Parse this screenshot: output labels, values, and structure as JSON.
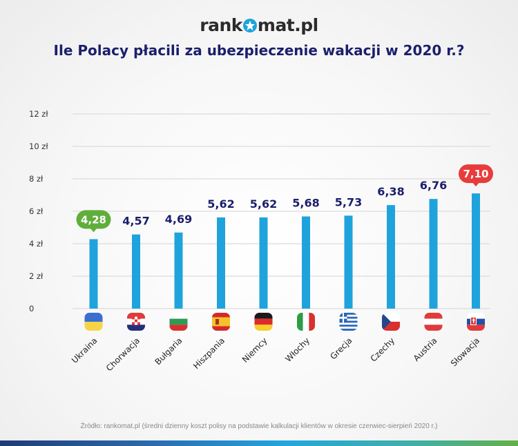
{
  "logo": {
    "before": "rank",
    "after": "mat.pl",
    "icon": "star-icon"
  },
  "title": "Ile Polacy płacili za ubezpieczenie wakacji w 2020 r.?",
  "source": "Źródło: rankomat.pl (średni dzienny koszt polisy na podstawie kalkulacji klientów w okresie czerwiec-sierpień 2020 r.)",
  "colors": {
    "bar": "#1fa3dc",
    "min_highlight": "#5fae3b",
    "max_highlight": "#e83c3c",
    "value_label": "#1b1f6b",
    "title": "#1b1f6b"
  },
  "chart_data": {
    "type": "bar",
    "title": "Ile Polacy płacili za ubezpieczenie wakacji w 2020 r.?",
    "xlabel": "",
    "ylabel": "",
    "ylim": [
      0,
      12
    ],
    "yticks": [
      0,
      2,
      4,
      6,
      8,
      10,
      12
    ],
    "ytick_labels": [
      "0",
      "2 zł",
      "4 zł",
      "6 zł",
      "8 zł",
      "10 zł",
      "12 zł"
    ],
    "grid": true,
    "categories": [
      "Ukraina",
      "Chorwacja",
      "Bułgaria",
      "Hiszpania",
      "Niemcy",
      "Włochy",
      "Grecja",
      "Czechy",
      "Austria",
      "Słowacja"
    ],
    "values": [
      4.28,
      4.57,
      4.69,
      5.62,
      5.62,
      5.68,
      5.73,
      6.38,
      6.76,
      7.1
    ],
    "value_labels": [
      "4,28",
      "4,57",
      "4,69",
      "5,62",
      "5,62",
      "5,68",
      "5,73",
      "6,38",
      "6,76",
      "7,10"
    ],
    "highlight": {
      "min_index": 0,
      "max_index": 9
    },
    "flags": [
      "flag-ukraine-icon",
      "flag-croatia-icon",
      "flag-bulgaria-icon",
      "flag-spain-icon",
      "flag-germany-icon",
      "flag-italy-icon",
      "flag-greece-icon",
      "flag-czechia-icon",
      "flag-austria-icon",
      "flag-slovakia-icon"
    ]
  }
}
